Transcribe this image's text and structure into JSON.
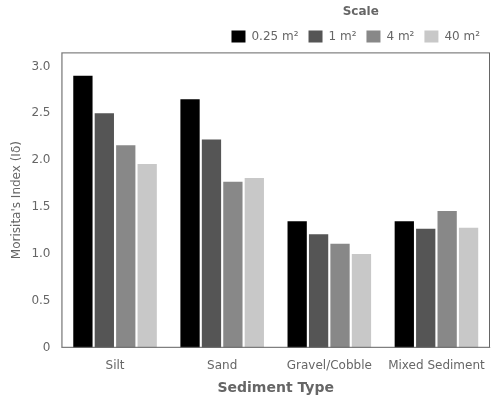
{
  "chart_data": {
    "type": "bar",
    "categories": [
      "Silt",
      "Sand",
      "Gravel/Cobble",
      "Mixed Sediment"
    ],
    "series": [
      {
        "name": "0.25 m²",
        "color": "#000000",
        "values": [
          2.9,
          2.65,
          1.35,
          1.35
        ]
      },
      {
        "name": "1 m²",
        "color": "#555555",
        "values": [
          2.5,
          2.22,
          1.21,
          1.27
        ]
      },
      {
        "name": "4 m²",
        "color": "#888888",
        "values": [
          2.16,
          1.77,
          1.11,
          1.46
        ]
      },
      {
        "name": "40 m²",
        "color": "#c8c8c8",
        "values": [
          1.96,
          1.81,
          1.0,
          1.28
        ]
      }
    ],
    "xlabel": "Sediment Type",
    "ylabel": "Morisita's Index (Iδ)",
    "legend_title": "Scale",
    "ylim": [
      0,
      3.15
    ],
    "yticks": [
      0,
      0.5,
      {
        "value": 1.0,
        "label": "1.0"
      },
      1.5,
      {
        "value": 2.0,
        "label": "2.0"
      },
      2.5,
      {
        "value": 3.0,
        "label": "3.0"
      }
    ],
    "grid": false,
    "legend": "upper right"
  }
}
